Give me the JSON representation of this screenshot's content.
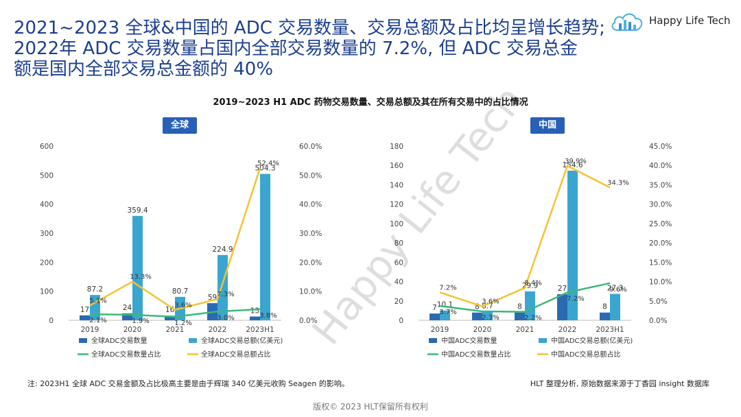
{
  "headline": [
    "2021~2023 全球&中国的 ADC 交易数量、交易总额及占比均呈增长趋势;",
    "2022年 ADC 交易数量占国内全部交易数量的 7.2%, 但 ADC 交易总金",
    "额是国内全部交易总金额的 40%"
  ],
  "logo": {
    "text": "Happy Life Tech"
  },
  "chart_title": "2019~2023 H1 ADC 药物交易数量、交易总额及其在所有交易中的占比情况",
  "watermark": "Happy Life Tech",
  "footnote": "注: 2023H1 全球 ADC 交易金额及占比极高主要是由于辉瑞 340 亿美元收购 Seagen 的影响。",
  "source": "HLT 整理分析, 原始数据来源于丁香园 insight 数据库",
  "copyright": "版权© 2023 HLT保留所有权利",
  "colors": {
    "count_bar": "#2a6ab3",
    "amount_bar": "#3aa6d0",
    "count_pct_line": "#3cb878",
    "amount_pct_line": "#f3c331",
    "headline": "#1b3f8f",
    "region_label": "#2860b8"
  },
  "chart_data": [
    {
      "type": "bar",
      "region_label": "全球",
      "categories": [
        "2019",
        "2020",
        "2021",
        "2022",
        "2023H1"
      ],
      "ylim": [
        0,
        600
      ],
      "yticks": [
        "0",
        "100",
        "200",
        "300",
        "400",
        "500",
        "600"
      ],
      "y2lim": [
        0,
        60
      ],
      "y2ticks": [
        "0.0%",
        "10.0%",
        "20.0%",
        "30.0%",
        "40.0%",
        "50.0%",
        "60.0%"
      ],
      "legend_position": "bottom",
      "series": [
        {
          "name": "全球ADC交易数量",
          "kind": "bar",
          "axis": "left",
          "values": [
            17,
            24,
            16,
            59,
            13
          ],
          "labels": [
            "17",
            "24",
            "16",
            "59",
            "13"
          ]
        },
        {
          "name": "全球ADC交易总额(亿美元)",
          "kind": "bar",
          "axis": "left",
          "values": [
            87.2,
            359.4,
            80.7,
            224.9,
            504.3
          ],
          "labels": [
            "87.2",
            "359.4",
            "80.7",
            "224.9",
            "504.3"
          ]
        },
        {
          "name": "全球ADC交易数量占比",
          "kind": "line",
          "axis": "right",
          "values": [
            2.1,
            1.9,
            1.2,
            3.0,
            3.8
          ],
          "labels": [
            "2.1%",
            "1.9%",
            "1.2%",
            "3.0%",
            "3.8%"
          ]
        },
        {
          "name": "全球ADC交易总额占比",
          "kind": "line",
          "axis": "right",
          "values": [
            5.1,
            13.3,
            3.6,
            7.3,
            52.4
          ],
          "labels": [
            "5.1%",
            "13.3%",
            "3.6%",
            "7.3%",
            "52.4%"
          ]
        }
      ]
    },
    {
      "type": "bar",
      "region_label": "中国",
      "categories": [
        "2019",
        "2020",
        "2021",
        "2022",
        "2023H1"
      ],
      "ylim": [
        0,
        180
      ],
      "yticks": [
        "0",
        "20",
        "40",
        "60",
        "80",
        "100",
        "120",
        "140",
        "160",
        "180"
      ],
      "y2lim": [
        0,
        45
      ],
      "y2ticks": [
        "0.0%",
        "5.0%",
        "10.0%",
        "15.0%",
        "20.0%",
        "25.0%",
        "30.0%",
        "35.0%",
        "40.0%",
        "45.0%"
      ],
      "legend_position": "bottom",
      "series": [
        {
          "name": "中国ADC交易数量",
          "kind": "bar",
          "axis": "left",
          "values": [
            7,
            8,
            8,
            27,
            8
          ],
          "labels": [
            "7",
            "8",
            "8",
            "27",
            "8"
          ]
        },
        {
          "name": "中国ADC交易总额(亿美元)",
          "kind": "bar",
          "axis": "left",
          "values": [
            10.1,
            8.7,
            29.9,
            154.6,
            27.3
          ],
          "labels": [
            "10.1",
            "8.7",
            "29.9",
            "154.6",
            "27.3"
          ]
        },
        {
          "name": "中国ADC交易数量占比",
          "kind": "line",
          "axis": "right",
          "values": [
            3.7,
            2.3,
            2.2,
            7.2,
            9.6
          ],
          "labels": [
            "3.7%",
            "2.3%",
            "2.2%",
            "7.2%",
            "9.6%"
          ]
        },
        {
          "name": "中国ADC交易总额占比",
          "kind": "line",
          "axis": "right",
          "values": [
            7.2,
            3.6,
            8.4,
            39.9,
            34.3
          ],
          "labels": [
            "7.2%",
            "3.6%",
            "8.4%",
            "39.9%",
            "34.3%"
          ]
        }
      ]
    }
  ]
}
